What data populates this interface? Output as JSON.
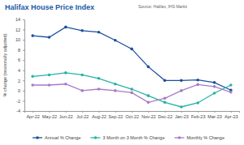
{
  "chart_data": {
    "type": "line",
    "title": "Halifax House Price Index",
    "subtitle": "Source: Halifax, IHS Markit",
    "y_label": "% change (seasonally adjusted)",
    "categories": [
      "Apr-22",
      "May-22",
      "Jun-22",
      "Jul-22",
      "Aug-22",
      "Sep-22",
      "Oct-22",
      "Nov-22",
      "Dec-22",
      "Jan-23",
      "Feb-23",
      "Mar-23",
      "Apr-23"
    ],
    "series": [
      {
        "name": "Annual % Change",
        "color": "#1c4f9c",
        "marker": "circle",
        "values": [
          10.8,
          10.5,
          12.5,
          11.8,
          11.5,
          9.9,
          8.2,
          4.7,
          2.0,
          2.0,
          2.1,
          1.6,
          0.1
        ]
      },
      {
        "name": "3 Month on 3 Month % Change",
        "color": "#26b3a3",
        "marker": "circle",
        "values": [
          2.8,
          3.1,
          3.5,
          3.1,
          2.4,
          1.3,
          0.3,
          -1.0,
          -2.3,
          -3.2,
          -2.4,
          -0.5,
          1.1
        ]
      },
      {
        "name": "Monthly % Change",
        "color": "#a67bc8",
        "marker": "circle",
        "values": [
          1.1,
          1.1,
          1.3,
          0.0,
          0.3,
          0.0,
          -0.4,
          -2.3,
          -1.5,
          0.0,
          1.2,
          0.8,
          -0.3
        ]
      }
    ],
    "ylim": [
      -4,
      14
    ],
    "yticks": [
      -4,
      -2,
      0,
      2,
      4,
      6,
      8,
      10,
      12,
      14
    ],
    "grid": false,
    "legend": "bottom"
  }
}
